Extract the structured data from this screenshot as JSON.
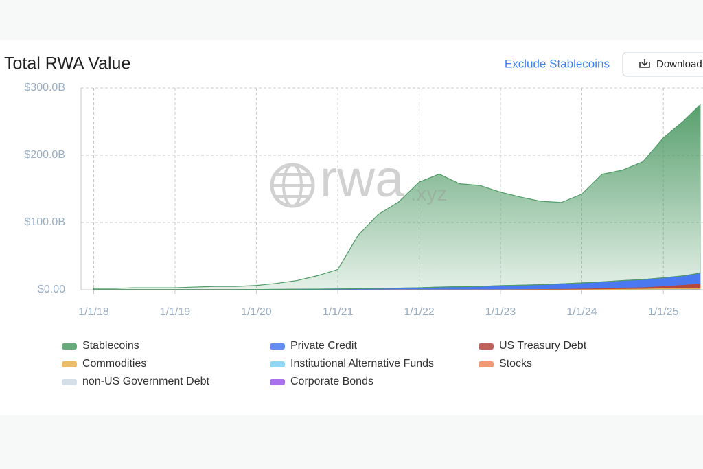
{
  "chart_data": {
    "type": "stacked_area",
    "title": "Total RWA Value",
    "toggle": "Exclude Stablecoins",
    "download": "Download",
    "watermark": {
      "name": "rwa",
      "domain": ".xyz"
    },
    "x": [
      "2018-01-01",
      "2018-04-01",
      "2018-07-01",
      "2018-10-01",
      "2019-01-01",
      "2019-04-01",
      "2019-07-01",
      "2019-10-01",
      "2020-01-01",
      "2020-04-01",
      "2020-07-01",
      "2020-10-01",
      "2021-01-01",
      "2021-04-01",
      "2021-07-01",
      "2021-10-01",
      "2022-01-01",
      "2022-04-01",
      "2022-07-01",
      "2022-10-01",
      "2023-01-01",
      "2023-04-01",
      "2023-07-01",
      "2023-10-01",
      "2024-01-01",
      "2024-04-01",
      "2024-07-01",
      "2024-10-01",
      "2025-01-01",
      "2025-04-01",
      "2025-06-15"
    ],
    "xlim": [
      "2017-11-05",
      "2025-06-28"
    ],
    "xticks": [
      {
        "value": "2018-01-01",
        "label": "1/1/18"
      },
      {
        "value": "2019-01-01",
        "label": "1/1/19"
      },
      {
        "value": "2020-01-01",
        "label": "1/1/20"
      },
      {
        "value": "2021-01-01",
        "label": "1/1/21"
      },
      {
        "value": "2022-01-01",
        "label": "1/1/22"
      },
      {
        "value": "2023-01-01",
        "label": "1/1/23"
      },
      {
        "value": "2024-01-01",
        "label": "1/1/24"
      },
      {
        "value": "2025-01-01",
        "label": "1/1/25"
      }
    ],
    "ylim": [
      0,
      300
    ],
    "yticks": [
      {
        "value": 0,
        "label": "$0.00"
      },
      {
        "value": 100,
        "label": "$100.0B"
      },
      {
        "value": 200,
        "label": "$200.0B"
      },
      {
        "value": 300,
        "label": "$300.0B"
      }
    ],
    "grid": true,
    "series": [
      {
        "name": "Stablecoins",
        "color": "#4f9b66",
        "values": [
          2,
          2,
          3,
          3,
          3,
          4,
          5,
          5,
          6,
          9,
          13,
          20,
          29,
          79,
          110,
          128,
          157,
          168,
          153,
          150,
          139,
          131,
          124,
          121,
          132,
          160,
          164,
          175,
          208,
          230,
          250
        ]
      },
      {
        "name": "Private Credit",
        "color": "#4a78f0",
        "values": [
          0,
          0,
          0,
          0,
          0,
          0,
          0,
          0,
          0.1,
          0.1,
          0.2,
          0.3,
          0.5,
          0.8,
          1,
          1.5,
          2,
          3,
          3.5,
          4,
          5,
          5.5,
          6,
          7,
          8,
          9,
          10,
          11,
          12,
          13,
          15
        ]
      },
      {
        "name": "US Treasury Debt",
        "color": "#b5473f",
        "values": [
          0,
          0,
          0,
          0,
          0,
          0,
          0,
          0,
          0,
          0,
          0,
          0,
          0,
          0,
          0,
          0,
          0,
          0,
          0,
          0,
          0.1,
          0.3,
          0.6,
          0.8,
          0.9,
          1.3,
          1.8,
          2,
          3,
          4.5,
          6
        ]
      },
      {
        "name": "Commodities",
        "color": "#e8b04e",
        "values": [
          0,
          0,
          0,
          0,
          0,
          0,
          0,
          0,
          0.3,
          0.4,
          0.5,
          0.6,
          0.7,
          0.8,
          0.9,
          1,
          1,
          1,
          1,
          1,
          1,
          1,
          1,
          1,
          1,
          1.1,
          1.2,
          1.3,
          1.5,
          1.7,
          2
        ]
      },
      {
        "name": "Institutional Alternative Funds",
        "color": "#7fd0ef",
        "values": [
          0,
          0,
          0,
          0,
          0,
          0,
          0,
          0,
          0,
          0,
          0,
          0,
          0,
          0,
          0,
          0,
          0,
          0,
          0,
          0,
          0,
          0,
          0,
          0,
          0.1,
          0.2,
          0.3,
          0.4,
          0.5,
          0.6,
          0.7
        ]
      },
      {
        "name": "Stocks",
        "color": "#f0875a",
        "values": [
          0,
          0,
          0,
          0,
          0,
          0,
          0,
          0,
          0,
          0,
          0,
          0,
          0,
          0,
          0,
          0,
          0,
          0,
          0,
          0,
          0,
          0,
          0,
          0,
          0,
          0,
          0.1,
          0.2,
          0.3,
          0.4,
          0.4
        ]
      },
      {
        "name": "non-US Government Debt",
        "color": "#cdd9e3",
        "values": [
          0,
          0,
          0,
          0,
          0,
          0,
          0,
          0,
          0,
          0,
          0,
          0,
          0,
          0,
          0,
          0,
          0,
          0,
          0,
          0,
          0,
          0,
          0,
          0,
          0.1,
          0.1,
          0.2,
          0.2,
          0.3,
          0.3,
          0.4
        ]
      },
      {
        "name": "Corporate Bonds",
        "color": "#9b59e6",
        "values": [
          0,
          0,
          0,
          0,
          0,
          0,
          0,
          0,
          0,
          0,
          0,
          0,
          0,
          0,
          0,
          0,
          0,
          0,
          0,
          0,
          0,
          0,
          0,
          0,
          0.1,
          0.1,
          0.1,
          0.1,
          0.2,
          0.2,
          0.2
        ]
      }
    ]
  }
}
